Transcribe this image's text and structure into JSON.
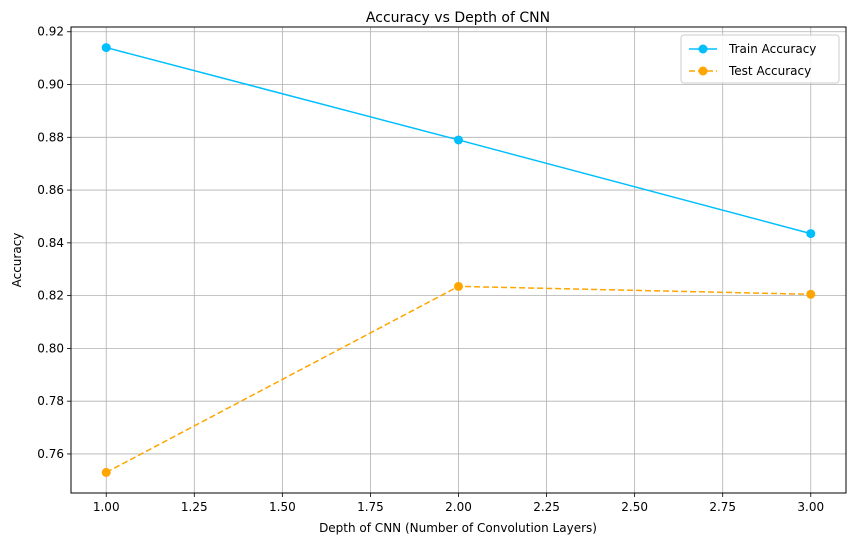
{
  "chart_data": {
    "type": "line",
    "title": "Accuracy vs Depth of CNN",
    "xlabel": "Depth of CNN (Number of Convolution Layers)",
    "ylabel": "Accuracy",
    "xlim": [
      0.9,
      3.1
    ],
    "ylim": [
      0.7452,
      0.9218
    ],
    "x_ticks": [
      1.0,
      1.25,
      1.5,
      1.75,
      2.0,
      2.25,
      2.5,
      2.75,
      3.0
    ],
    "x_tick_labels": [
      "1.00",
      "1.25",
      "1.50",
      "1.75",
      "2.00",
      "2.25",
      "2.50",
      "2.75",
      "3.00"
    ],
    "y_ticks": [
      0.76,
      0.78,
      0.8,
      0.82,
      0.84,
      0.86,
      0.88,
      0.9,
      0.92
    ],
    "y_tick_labels": [
      "0.76",
      "0.78",
      "0.80",
      "0.82",
      "0.84",
      "0.86",
      "0.88",
      "0.90",
      "0.92"
    ],
    "grid": true,
    "legend_position": "top-right",
    "series": [
      {
        "name": "Train Accuracy",
        "x": [
          1,
          2,
          3
        ],
        "y": [
          0.914,
          0.879,
          0.8435
        ],
        "color": "#00bfff",
        "linestyle": "solid",
        "marker": "circle"
      },
      {
        "name": "Test Accuracy",
        "x": [
          1,
          2,
          3
        ],
        "y": [
          0.753,
          0.8235,
          0.8205
        ],
        "color": "#ffa500",
        "linestyle": "dashed",
        "marker": "circle"
      }
    ]
  }
}
